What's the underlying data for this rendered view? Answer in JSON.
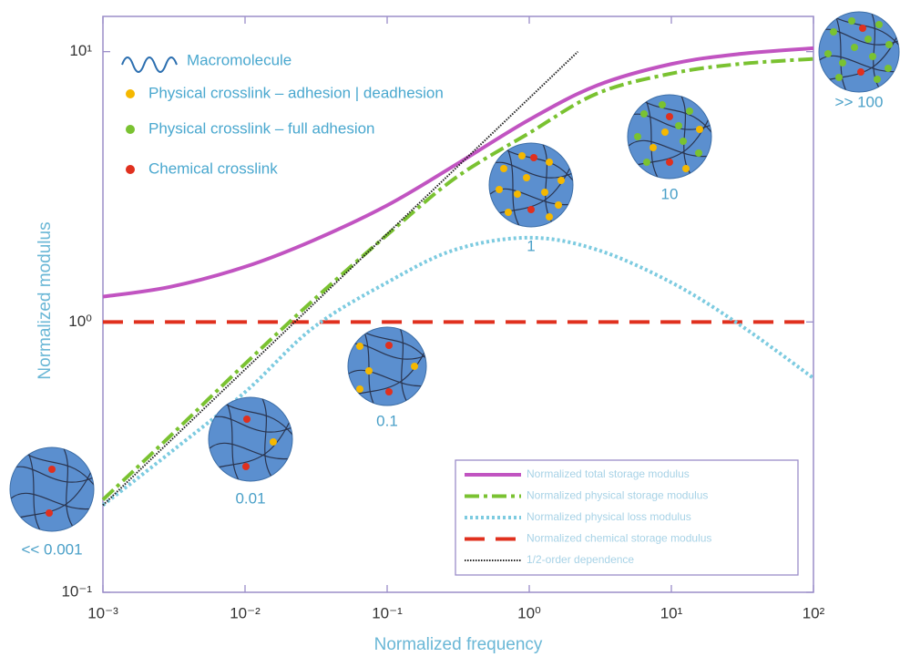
{
  "chart_data": {
    "type": "line",
    "xlabel": "Normalized frequency",
    "ylabel": "Normalized modulus",
    "xscale": "log",
    "yscale": "log",
    "xlim": [
      0.001,
      100
    ],
    "ylim": [
      0.1,
      13.5
    ],
    "xticks": [
      {
        "value": 0.001,
        "label": "10⁻³"
      },
      {
        "value": 0.01,
        "label": "10⁻²"
      },
      {
        "value": 0.1,
        "label": "10⁻¹"
      },
      {
        "value": 1,
        "label": "10⁰"
      },
      {
        "value": 10,
        "label": "10¹"
      },
      {
        "value": 100,
        "label": "10²"
      }
    ],
    "yticks": [
      {
        "value": 0.1,
        "label": "10⁻¹"
      },
      {
        "value": 1,
        "label": "10⁰"
      },
      {
        "value": 10,
        "label": "10¹"
      }
    ],
    "x": [
      0.001,
      0.003,
      0.01,
      0.03,
      0.1,
      0.3,
      1,
      3,
      10,
      30,
      100
    ],
    "series": [
      {
        "name": "Normalized total storage modulus",
        "color": "#c154c1",
        "linestyle": "solid",
        "values": [
          1.24,
          1.35,
          1.6,
          2.0,
          2.7,
          3.8,
          5.6,
          7.5,
          9.0,
          9.8,
          10.3
        ]
      },
      {
        "name": "Normalized physical storage modulus",
        "color": "#7ac231",
        "linestyle": "dashdot",
        "values": [
          0.22,
          0.38,
          0.7,
          1.2,
          2.1,
          3.4,
          5.0,
          7.0,
          8.3,
          9.0,
          9.4
        ]
      },
      {
        "name": "Normalized physical loss modulus",
        "color": "#7dcbe0",
        "linestyle": "dotted",
        "values": [
          0.21,
          0.33,
          0.55,
          0.95,
          1.4,
          1.85,
          2.05,
          1.85,
          1.4,
          0.98,
          0.62
        ]
      },
      {
        "name": "Normalized chemical storage modulus",
        "color": "#e0301e",
        "linestyle": "dashed",
        "values": [
          1,
          1,
          1,
          1,
          1,
          1,
          1,
          1,
          1,
          1,
          1
        ]
      },
      {
        "name": "1/2-order dependence",
        "color": "#222222",
        "linestyle": "finedotted",
        "x": [
          0.001,
          2.2
        ],
        "values": [
          0.21,
          10
        ]
      }
    ],
    "legend": "lower right",
    "key": [
      {
        "label": "Macromolecule",
        "color": "#2c6fb0"
      },
      {
        "label": "Physical crosslink – adhesion | deadhesion",
        "color": "#f5b800"
      },
      {
        "label": "Physical crosslink – full adhesion",
        "color": "#7ac231"
      },
      {
        "label": "Chemical crosslink",
        "color": "#e0301e"
      }
    ],
    "insets": [
      {
        "label": "<< 0.001"
      },
      {
        "label": "0.01"
      },
      {
        "label": "0.1"
      },
      {
        "label": "1"
      },
      {
        "label": "10"
      },
      {
        "label": ">> 100"
      }
    ]
  }
}
